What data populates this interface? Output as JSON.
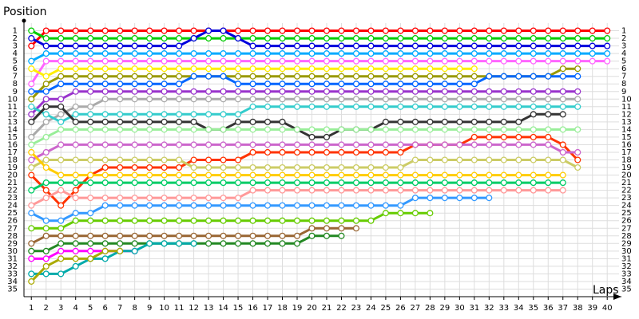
{
  "chart_data": {
    "type": "lap",
    "y_label": "Position",
    "x_label": "Laps",
    "x": [
      1,
      2,
      3,
      4,
      5,
      6,
      7,
      8,
      9,
      10,
      11,
      12,
      13,
      14,
      15,
      16,
      17,
      18,
      19,
      20,
      21,
      22,
      23,
      24,
      25,
      26,
      27,
      28,
      29,
      30,
      31,
      32,
      33,
      34,
      35,
      36,
      37,
      38,
      39,
      40
    ],
    "xlim": [
      0.5,
      40.8
    ],
    "ylim": [
      36,
      0
    ],
    "xticks": [
      1,
      2,
      3,
      4,
      5,
      6,
      7,
      8,
      9,
      10,
      11,
      12,
      13,
      14,
      15,
      16,
      17,
      18,
      19,
      20,
      21,
      22,
      23,
      24,
      25,
      26,
      27,
      28,
      29,
      30,
      31,
      32,
      33,
      34,
      35,
      36,
      37,
      38,
      39,
      40
    ],
    "yticks": [
      1,
      2,
      3,
      4,
      5,
      6,
      7,
      8,
      9,
      10,
      11,
      12,
      13,
      14,
      15,
      16,
      17,
      18,
      19,
      20,
      21,
      22,
      23,
      24,
      25,
      26,
      27,
      28,
      29,
      30,
      31,
      32,
      33,
      34,
      35
    ],
    "grid": true,
    "series": [
      {
        "color": "#ff0000",
        "values": [
          3,
          1,
          1,
          1,
          1,
          1,
          1,
          1,
          1,
          1,
          1,
          1,
          1,
          1,
          1,
          1,
          1,
          1,
          1,
          1,
          1,
          1,
          1,
          1,
          1,
          1,
          1,
          1,
          1,
          1,
          1,
          1,
          1,
          1,
          1,
          1,
          1,
          1,
          1,
          1
        ]
      },
      {
        "color": "#00cc00",
        "values": [
          1,
          2,
          2,
          2,
          2,
          2,
          2,
          2,
          2,
          2,
          2,
          2,
          2,
          2,
          2,
          2,
          2,
          2,
          2,
          2,
          2,
          2,
          2,
          2,
          2,
          2,
          2,
          2,
          2,
          2,
          2,
          2,
          2,
          2,
          2,
          2,
          2,
          2,
          2,
          2
        ]
      },
      {
        "color": "#0000dd",
        "values": [
          2,
          3,
          3,
          3,
          3,
          3,
          3,
          3,
          3,
          3,
          3,
          2,
          1,
          1,
          2,
          3,
          3,
          3,
          3,
          3,
          3,
          3,
          3,
          3,
          3,
          3,
          3,
          3,
          3,
          3,
          3,
          3,
          3,
          3,
          3,
          3,
          3,
          3,
          3,
          3
        ]
      },
      {
        "color": "#00aaff",
        "values": [
          5,
          4,
          4,
          4,
          4,
          4,
          4,
          4,
          4,
          4,
          4,
          4,
          4,
          4,
          4,
          4,
          4,
          4,
          4,
          4,
          4,
          4,
          4,
          4,
          4,
          4,
          4,
          4,
          4,
          4,
          4,
          4,
          4,
          4,
          4,
          4,
          4,
          4,
          4,
          4
        ]
      },
      {
        "color": "#ff66ff",
        "values": [
          8,
          5,
          5,
          5,
          5,
          5,
          5,
          5,
          5,
          5,
          5,
          5,
          5,
          5,
          5,
          5,
          5,
          5,
          5,
          5,
          5,
          5,
          5,
          5,
          5,
          5,
          5,
          5,
          5,
          5,
          5,
          5,
          5,
          5,
          5,
          5,
          5,
          5,
          5,
          5
        ]
      },
      {
        "color": "#ffee00",
        "values": [
          6,
          7,
          6,
          6,
          6,
          6,
          6,
          6,
          6,
          6,
          6,
          6,
          6,
          6,
          6,
          6,
          6,
          6,
          6,
          6,
          6,
          6,
          6,
          6,
          6,
          6,
          6,
          6,
          6,
          6,
          6,
          null,
          null,
          null,
          null,
          null,
          null,
          null,
          null,
          null
        ]
      },
      {
        "color": "#999900",
        "values": [
          10,
          8,
          7,
          7,
          7,
          7,
          7,
          7,
          7,
          7,
          7,
          7,
          7,
          7,
          7,
          7,
          7,
          7,
          7,
          7,
          7,
          7,
          7,
          7,
          7,
          7,
          7,
          7,
          7,
          7,
          7,
          7,
          7,
          7,
          7,
          7,
          6,
          6,
          null,
          null
        ]
      },
      {
        "color": "#0066ff",
        "values": [
          9,
          9,
          8,
          8,
          8,
          8,
          8,
          8,
          8,
          8,
          8,
          7,
          7,
          7,
          8,
          8,
          8,
          8,
          8,
          8,
          8,
          8,
          8,
          8,
          8,
          8,
          8,
          8,
          8,
          8,
          8,
          7,
          7,
          7,
          7,
          7,
          7,
          7,
          null,
          null
        ]
      },
      {
        "color": "#9933cc",
        "values": [
          12,
          10,
          10,
          9,
          9,
          9,
          9,
          9,
          9,
          9,
          9,
          9,
          9,
          9,
          9,
          9,
          9,
          9,
          9,
          9,
          9,
          9,
          9,
          9,
          9,
          9,
          9,
          9,
          9,
          9,
          9,
          9,
          9,
          9,
          9,
          9,
          9,
          9,
          null,
          null
        ]
      },
      {
        "color": "#aaaaaa",
        "values": [
          15,
          13,
          12,
          11,
          11,
          10,
          10,
          10,
          10,
          10,
          10,
          10,
          10,
          10,
          10,
          10,
          10,
          10,
          10,
          10,
          10,
          10,
          10,
          10,
          10,
          10,
          10,
          10,
          10,
          10,
          10,
          10,
          10,
          10,
          10,
          10,
          10,
          10,
          null,
          null
        ]
      },
      {
        "color": "#33cccc",
        "values": [
          11,
          12,
          13,
          12,
          12,
          12,
          12,
          12,
          12,
          12,
          12,
          12,
          12,
          12,
          12,
          11,
          11,
          11,
          11,
          11,
          11,
          11,
          11,
          11,
          11,
          11,
          11,
          11,
          11,
          11,
          11,
          11,
          11,
          11,
          11,
          11,
          11,
          11,
          null,
          null
        ]
      },
      {
        "color": "#333333",
        "values": [
          13,
          11,
          11,
          13,
          13,
          13,
          13,
          13,
          13,
          13,
          13,
          13,
          14,
          14,
          13,
          13,
          13,
          13,
          14,
          15,
          15,
          14,
          14,
          14,
          13,
          13,
          13,
          13,
          13,
          13,
          13,
          13,
          13,
          13,
          12,
          12,
          12,
          null,
          null,
          null
        ]
      },
      {
        "color": "#99ee99",
        "values": [
          16,
          15,
          14,
          14,
          14,
          14,
          14,
          14,
          14,
          14,
          14,
          14,
          14,
          14,
          14,
          14,
          14,
          14,
          14,
          14,
          14,
          14,
          14,
          14,
          14,
          14,
          14,
          14,
          14,
          14,
          14,
          14,
          14,
          14,
          14,
          14,
          14,
          14,
          null,
          null
        ]
      },
      {
        "color": "#ff3300",
        "values": [
          20,
          22,
          24,
          22,
          20,
          19,
          19,
          19,
          19,
          19,
          19,
          18,
          18,
          18,
          18,
          17,
          17,
          17,
          17,
          17,
          17,
          17,
          17,
          17,
          17,
          17,
          16,
          16,
          16,
          16,
          15,
          15,
          15,
          15,
          15,
          15,
          16,
          18,
          null,
          null
        ]
      },
      {
        "color": "#cc66cc",
        "values": [
          18,
          17,
          16,
          16,
          16,
          16,
          16,
          16,
          16,
          16,
          16,
          16,
          16,
          16,
          16,
          16,
          16,
          16,
          16,
          16,
          16,
          16,
          16,
          16,
          16,
          16,
          16,
          16,
          16,
          16,
          16,
          16,
          16,
          16,
          16,
          16,
          17,
          17,
          null,
          null
        ]
      },
      {
        "color": "#cccc66",
        "values": [
          19,
          18,
          18,
          18,
          18,
          18,
          18,
          18,
          18,
          18,
          18,
          19,
          19,
          19,
          19,
          19,
          19,
          19,
          19,
          19,
          19,
          19,
          19,
          19,
          19,
          19,
          18,
          18,
          18,
          18,
          18,
          18,
          18,
          18,
          18,
          18,
          18,
          19,
          null,
          null
        ]
      },
      {
        "color": "#ffcc00",
        "values": [
          17,
          19,
          20,
          20,
          20,
          20,
          20,
          20,
          20,
          20,
          20,
          20,
          20,
          20,
          20,
          20,
          20,
          20,
          20,
          20,
          20,
          20,
          20,
          20,
          20,
          20,
          20,
          20,
          20,
          20,
          20,
          20,
          20,
          20,
          20,
          20,
          20,
          null,
          null,
          null
        ]
      },
      {
        "color": "#00cc66",
        "values": [
          22,
          21,
          21,
          21,
          21,
          21,
          21,
          21,
          21,
          21,
          21,
          21,
          21,
          21,
          21,
          21,
          21,
          21,
          21,
          21,
          21,
          21,
          21,
          21,
          21,
          21,
          21,
          21,
          21,
          21,
          21,
          21,
          21,
          21,
          21,
          21,
          21,
          null,
          null,
          null
        ]
      },
      {
        "color": "#ff9999",
        "values": [
          24,
          23,
          22,
          23,
          23,
          23,
          23,
          23,
          23,
          23,
          23,
          23,
          23,
          23,
          23,
          22,
          22,
          22,
          22,
          22,
          22,
          22,
          22,
          22,
          22,
          22,
          22,
          22,
          22,
          22,
          22,
          22,
          22,
          22,
          22,
          22,
          22,
          null,
          null,
          null
        ]
      },
      {
        "color": "#3399ff",
        "values": [
          25,
          26,
          26,
          25,
          25,
          24,
          24,
          24,
          24,
          24,
          24,
          24,
          24,
          24,
          24,
          24,
          24,
          24,
          24,
          24,
          24,
          24,
          24,
          24,
          24,
          24,
          23,
          23,
          23,
          23,
          23,
          23,
          null,
          null,
          null,
          null,
          null,
          null,
          null,
          null
        ]
      },
      {
        "color": "#66cc00",
        "values": [
          27,
          27,
          27,
          26,
          26,
          26,
          26,
          26,
          26,
          26,
          26,
          26,
          26,
          26,
          26,
          26,
          26,
          26,
          26,
          26,
          26,
          26,
          26,
          26,
          25,
          25,
          25,
          25,
          null,
          null,
          null,
          null,
          null,
          null,
          null,
          null,
          null,
          null,
          null,
          null
        ]
      },
      {
        "color": "#996633",
        "values": [
          29,
          28,
          28,
          28,
          28,
          28,
          28,
          28,
          28,
          28,
          28,
          28,
          28,
          28,
          28,
          28,
          28,
          28,
          28,
          27,
          27,
          27,
          27,
          null,
          null,
          null,
          null,
          null,
          null,
          null,
          null,
          null,
          null,
          null,
          null,
          null,
          null,
          null,
          null,
          null
        ]
      },
      {
        "color": "#228822",
        "values": [
          30,
          30,
          29,
          29,
          29,
          29,
          29,
          29,
          29,
          29,
          29,
          29,
          29,
          29,
          29,
          29,
          29,
          29,
          29,
          28,
          28,
          28,
          null,
          null,
          null,
          null,
          null,
          null,
          null,
          null,
          null,
          null,
          null,
          null,
          null,
          null,
          null,
          null,
          null,
          null
        ]
      },
      {
        "color": "#ff00ff",
        "values": [
          31,
          31,
          30,
          30,
          30,
          30,
          30,
          30,
          null,
          null,
          null,
          null,
          null,
          null,
          null,
          null,
          null,
          null,
          null,
          null,
          null,
          null,
          null,
          null,
          null,
          null,
          null,
          null,
          null,
          null,
          null,
          null,
          null,
          null,
          null,
          null,
          null,
          null,
          null,
          null
        ]
      },
      {
        "color": "#00aaaa",
        "values": [
          33,
          33,
          33,
          32,
          31,
          31,
          30,
          30,
          29,
          29,
          29,
          29,
          null,
          null,
          null,
          null,
          null,
          null,
          null,
          null,
          null,
          null,
          null,
          null,
          null,
          null,
          null,
          null,
          null,
          null,
          null,
          null,
          null,
          null,
          null,
          null,
          null,
          null,
          null,
          null
        ]
      },
      {
        "color": "#aaaa00",
        "values": [
          34,
          32,
          31,
          31,
          31,
          30,
          30,
          null,
          null,
          null,
          null,
          null,
          null,
          null,
          null,
          null,
          null,
          null,
          null,
          null,
          null,
          null,
          null,
          null,
          null,
          null,
          null,
          null,
          null,
          null,
          null,
          null,
          null,
          null,
          null,
          null,
          null,
          null,
          null,
          null
        ]
      }
    ]
  }
}
